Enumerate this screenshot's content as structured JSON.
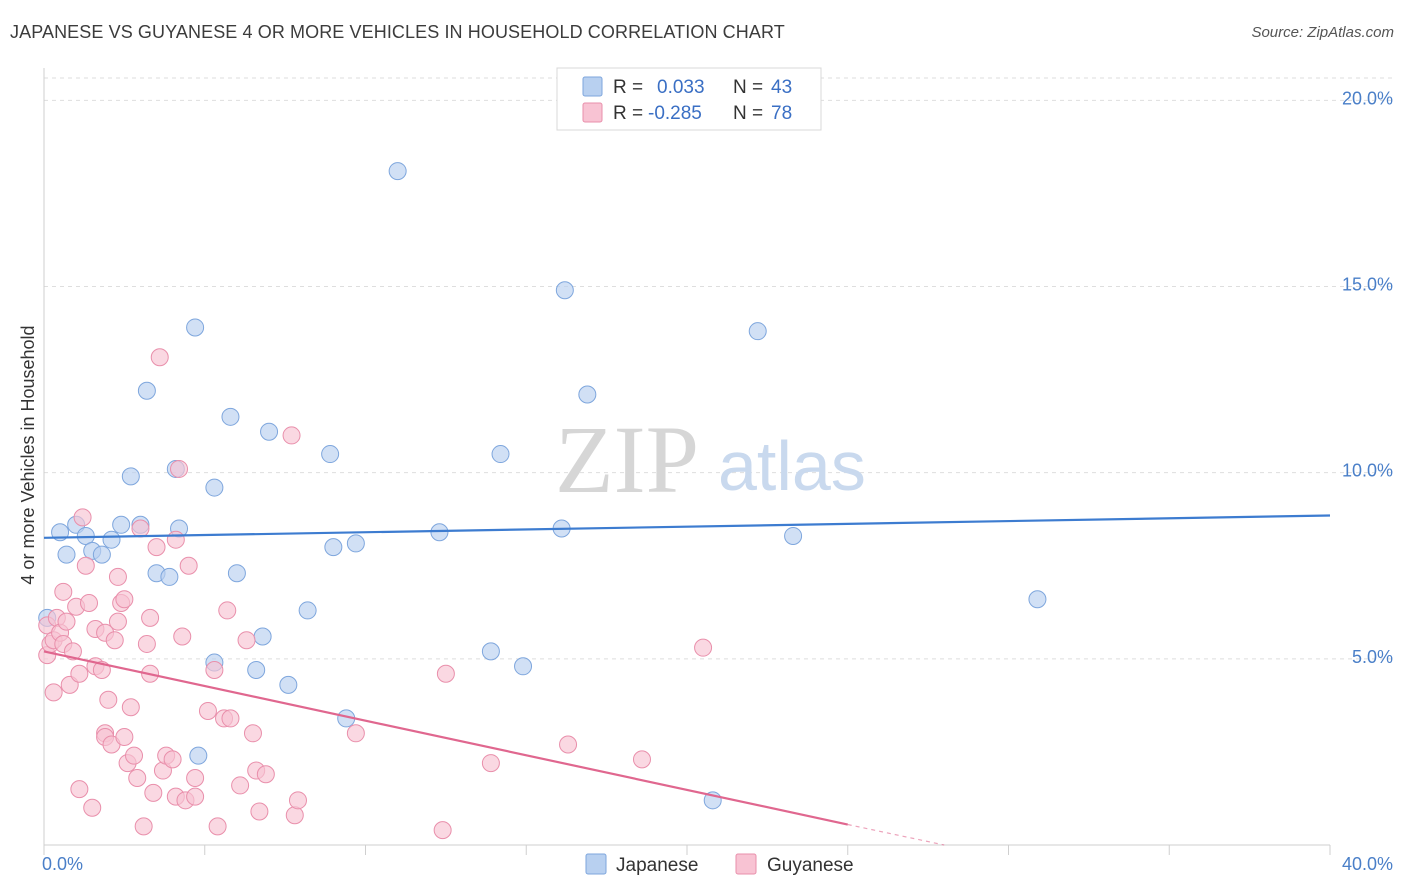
{
  "title": "JAPANESE VS GUYANESE 4 OR MORE VEHICLES IN HOUSEHOLD CORRELATION CHART",
  "source": "Source: ZipAtlas.com",
  "watermark": {
    "zip": "ZIP",
    "atlas": "atlas"
  },
  "colors": {
    "japanese_fill": "#b8d0f0",
    "japanese_stroke": "#7ea6dd",
    "japanese_line": "#3d7cd0",
    "guyanese_fill": "#f8c3d3",
    "guyanese_stroke": "#e98fab",
    "guyanese_line": "#e0678f",
    "grid": "#dedede",
    "axis_text": "#4a7fc8"
  },
  "legend_top": {
    "rows": [
      {
        "r_label": "R =",
        "r_value": "0.033",
        "n_label": "N =",
        "n_value": "43"
      },
      {
        "r_label": "R =",
        "r_value": "-0.285",
        "n_label": "N =",
        "n_value": "78"
      }
    ]
  },
  "legend_bottom": [
    "Japanese",
    "Guyanese"
  ],
  "chart_data": {
    "type": "scatter",
    "title": "JAPANESE VS GUYANESE 4 OR MORE VEHICLES IN HOUSEHOLD CORRELATION CHART",
    "xlabel": "",
    "ylabel": "4 or more Vehicles in Household",
    "xlim": [
      0,
      40
    ],
    "ylim": [
      0,
      20.6
    ],
    "x_tick_labels": [
      "0.0%",
      "40.0%"
    ],
    "y_ticks": [
      5,
      10,
      15,
      20
    ],
    "y_tick_labels": [
      "5.0%",
      "10.0%",
      "15.0%",
      "20.0%"
    ],
    "grid": true,
    "series": [
      {
        "name": "Japanese",
        "trend": {
          "x0": 0,
          "y0": 8.25,
          "x1": 40,
          "y1": 8.85
        },
        "points": [
          [
            0.1,
            6.1
          ],
          [
            0.5,
            8.4
          ],
          [
            0.7,
            7.8
          ],
          [
            1.0,
            8.6
          ],
          [
            1.3,
            8.3
          ],
          [
            1.5,
            7.9
          ],
          [
            1.8,
            7.8
          ],
          [
            2.1,
            8.2
          ],
          [
            2.4,
            8.6
          ],
          [
            2.7,
            9.9
          ],
          [
            3.0,
            8.6
          ],
          [
            3.2,
            12.2
          ],
          [
            3.5,
            7.3
          ],
          [
            3.9,
            7.2
          ],
          [
            4.1,
            10.1
          ],
          [
            4.2,
            8.5
          ],
          [
            4.7,
            13.9
          ],
          [
            5.3,
            9.6
          ],
          [
            5.3,
            4.9
          ],
          [
            5.8,
            11.5
          ],
          [
            6.0,
            7.3
          ],
          [
            6.6,
            4.7
          ],
          [
            6.8,
            5.6
          ],
          [
            7.0,
            11.1
          ],
          [
            7.6,
            4.3
          ],
          [
            8.2,
            6.3
          ],
          [
            8.9,
            10.5
          ],
          [
            9.0,
            8.0
          ],
          [
            9.4,
            3.4
          ],
          [
            9.7,
            8.1
          ],
          [
            11.0,
            18.1
          ],
          [
            12.3,
            8.4
          ],
          [
            13.9,
            5.2
          ],
          [
            14.2,
            10.5
          ],
          [
            14.9,
            4.8
          ],
          [
            16.1,
            8.5
          ],
          [
            16.2,
            14.9
          ],
          [
            16.9,
            12.1
          ],
          [
            20.8,
            1.2
          ],
          [
            22.2,
            13.8
          ],
          [
            23.3,
            8.3
          ],
          [
            30.9,
            6.6
          ],
          [
            4.8,
            2.4
          ]
        ]
      },
      {
        "name": "Guyanese",
        "trend": {
          "x0": 0,
          "y0": 5.2,
          "x1": 25.0,
          "y1": 0.55
        },
        "dashed_extension": {
          "x0": 25.0,
          "y0": 0.55,
          "x1": 28.0,
          "y1": 0.0
        },
        "points": [
          [
            0.1,
            5.9
          ],
          [
            0.1,
            5.1
          ],
          [
            0.2,
            5.4
          ],
          [
            0.3,
            5.5
          ],
          [
            0.4,
            6.1
          ],
          [
            0.5,
            5.7
          ],
          [
            0.6,
            5.4
          ],
          [
            0.6,
            6.8
          ],
          [
            0.7,
            6.0
          ],
          [
            0.8,
            4.3
          ],
          [
            0.9,
            5.2
          ],
          [
            1.0,
            6.4
          ],
          [
            1.1,
            4.6
          ],
          [
            1.2,
            8.8
          ],
          [
            1.3,
            7.5
          ],
          [
            1.4,
            6.5
          ],
          [
            1.5,
            1.0
          ],
          [
            1.6,
            5.8
          ],
          [
            1.6,
            4.8
          ],
          [
            1.8,
            4.7
          ],
          [
            1.9,
            5.7
          ],
          [
            1.9,
            3.0
          ],
          [
            1.9,
            2.9
          ],
          [
            2.1,
            2.7
          ],
          [
            2.2,
            5.5
          ],
          [
            2.3,
            6.0
          ],
          [
            2.3,
            7.2
          ],
          [
            2.4,
            6.5
          ],
          [
            2.5,
            6.6
          ],
          [
            2.5,
            2.9
          ],
          [
            2.6,
            2.2
          ],
          [
            2.7,
            3.7
          ],
          [
            2.8,
            2.4
          ],
          [
            2.9,
            1.8
          ],
          [
            3.0,
            8.5
          ],
          [
            3.1,
            0.5
          ],
          [
            3.2,
            5.4
          ],
          [
            3.3,
            6.1
          ],
          [
            3.3,
            4.6
          ],
          [
            3.4,
            1.4
          ],
          [
            3.5,
            8.0
          ],
          [
            3.6,
            13.1
          ],
          [
            3.7,
            2.0
          ],
          [
            3.8,
            2.4
          ],
          [
            4.0,
            2.3
          ],
          [
            4.1,
            8.2
          ],
          [
            4.1,
            1.3
          ],
          [
            4.2,
            10.1
          ],
          [
            4.3,
            5.6
          ],
          [
            4.4,
            1.2
          ],
          [
            4.5,
            7.5
          ],
          [
            4.7,
            1.3
          ],
          [
            4.7,
            1.8
          ],
          [
            5.1,
            3.6
          ],
          [
            5.3,
            4.7
          ],
          [
            5.4,
            0.5
          ],
          [
            5.6,
            3.4
          ],
          [
            5.7,
            6.3
          ],
          [
            5.8,
            3.4
          ],
          [
            6.1,
            1.6
          ],
          [
            6.3,
            5.5
          ],
          [
            6.5,
            3.0
          ],
          [
            6.6,
            2.0
          ],
          [
            6.7,
            0.9
          ],
          [
            6.9,
            1.9
          ],
          [
            7.7,
            11.0
          ],
          [
            7.8,
            0.8
          ],
          [
            7.9,
            1.2
          ],
          [
            9.7,
            3.0
          ],
          [
            12.4,
            0.4
          ],
          [
            12.5,
            4.6
          ],
          [
            13.9,
            2.2
          ],
          [
            16.3,
            2.7
          ],
          [
            18.6,
            2.3
          ],
          [
            20.5,
            5.3
          ],
          [
            0.3,
            4.1
          ],
          [
            1.1,
            1.5
          ],
          [
            2.0,
            3.9
          ]
        ]
      }
    ]
  }
}
